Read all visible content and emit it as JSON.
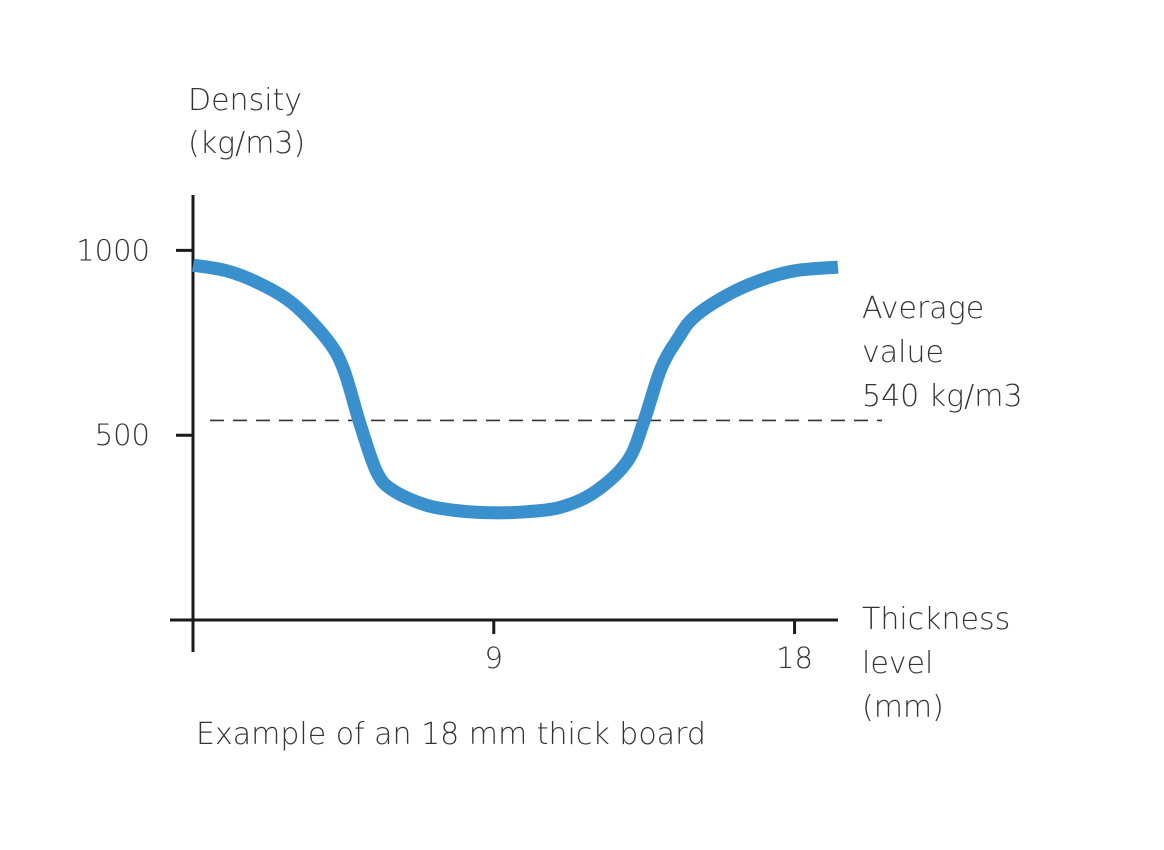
{
  "chart_data": {
    "type": "line",
    "title": "",
    "caption": "Example of an 18 mm thick board",
    "ylabel_lines": [
      "Density",
      "(kg/m3)"
    ],
    "xlabel_lines": [
      "Thickness",
      "level",
      "(mm)"
    ],
    "xlim": [
      0,
      19.3
    ],
    "ylim": [
      0,
      1150
    ],
    "x_ticks": [
      9,
      18
    ],
    "x_tick_labels": [
      "9",
      "18"
    ],
    "y_ticks": [
      500,
      1000
    ],
    "y_tick_labels": [
      "500",
      "1000"
    ],
    "grid": false,
    "colors": {
      "series": "#3a8fcd",
      "axis": "#1a1a1a",
      "reference": "#333333"
    },
    "series": [
      {
        "x": [
          0,
          1,
          2,
          3,
          4,
          4.5,
          5,
          5.5,
          6,
          7,
          8,
          9,
          10,
          11,
          12,
          13,
          13.5,
          14,
          14.5,
          15,
          16,
          17,
          18,
          19.3
        ],
        "y": [
          960,
          945,
          910,
          855,
          760,
          680,
          530,
          400,
          350,
          310,
          295,
          290,
          293,
          305,
          345,
          430,
          540,
          680,
          760,
          820,
          880,
          920,
          945,
          955
        ]
      }
    ],
    "reference_line": {
      "value": 540,
      "style": "dashed",
      "label_lines": [
        "Average",
        "value",
        "540 kg/m3"
      ]
    }
  }
}
